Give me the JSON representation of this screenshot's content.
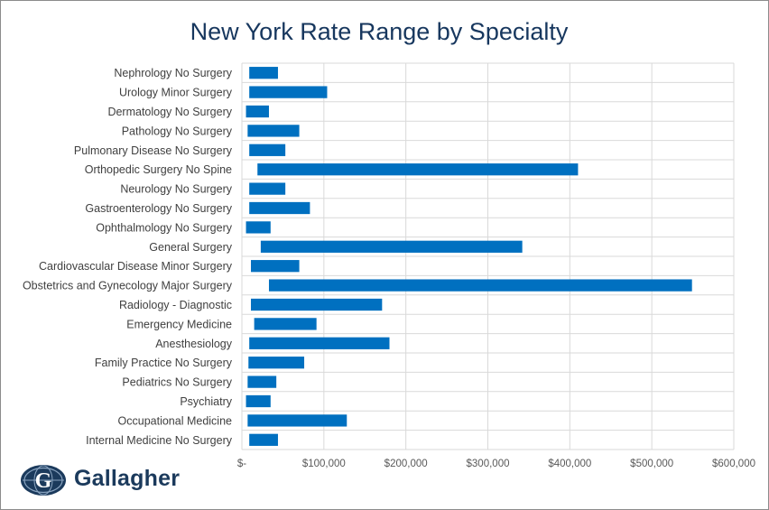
{
  "chart_data": {
    "type": "bar",
    "orientation": "horizontal",
    "subtype": "floating-range",
    "title": "New York Rate Range by Specialty",
    "xlabel": "",
    "ylabel": "",
    "xlim": [
      0,
      600000
    ],
    "tick_values": [
      0,
      100000,
      200000,
      300000,
      400000,
      500000,
      600000
    ],
    "tick_labels": [
      "$-",
      "$100,000",
      "$200,000",
      "$300,000",
      "$400,000",
      "$500,000",
      "$600,000"
    ],
    "grid": true,
    "legend": "none",
    "bar_color": "#0070c0",
    "categories": [
      "Nephrology No Surgery",
      "Urology Minor Surgery",
      "Dermatology No Surgery",
      "Pathology No Surgery",
      "Pulmonary Disease No Surgery",
      "Orthopedic Surgery No Spine",
      "Neurology No Surgery",
      "Gastroenterology No Surgery",
      "Ophthalmology No Surgery",
      "General Surgery",
      "Cardiovascular Disease Minor Surgery",
      "Obstetrics and Gynecology Major Surgery",
      "Radiology - Diagnostic",
      "Emergency Medicine",
      "Anesthesiology",
      "Family Practice No Surgery",
      "Pediatrics No Surgery",
      "Psychiatry",
      "Occupational Medicine",
      "Internal Medicine No Surgery"
    ],
    "series": [
      {
        "low": [
          9000,
          9000,
          5000,
          7000,
          9000,
          19000,
          9000,
          9000,
          5000,
          23000,
          11000,
          33000,
          11000,
          15000,
          9000,
          8000,
          7000,
          5000,
          7000,
          9000
        ],
        "high": [
          44000,
          104000,
          33000,
          70000,
          53000,
          410000,
          53000,
          83000,
          35000,
          342000,
          70000,
          549000,
          171000,
          91000,
          180000,
          76000,
          42000,
          35000,
          128000,
          44000
        ]
      }
    ]
  },
  "brand": {
    "logo_text": "Gallagher",
    "logo_icon": "gallagher-globe-icon",
    "logo_color": "#1b3a5c"
  }
}
